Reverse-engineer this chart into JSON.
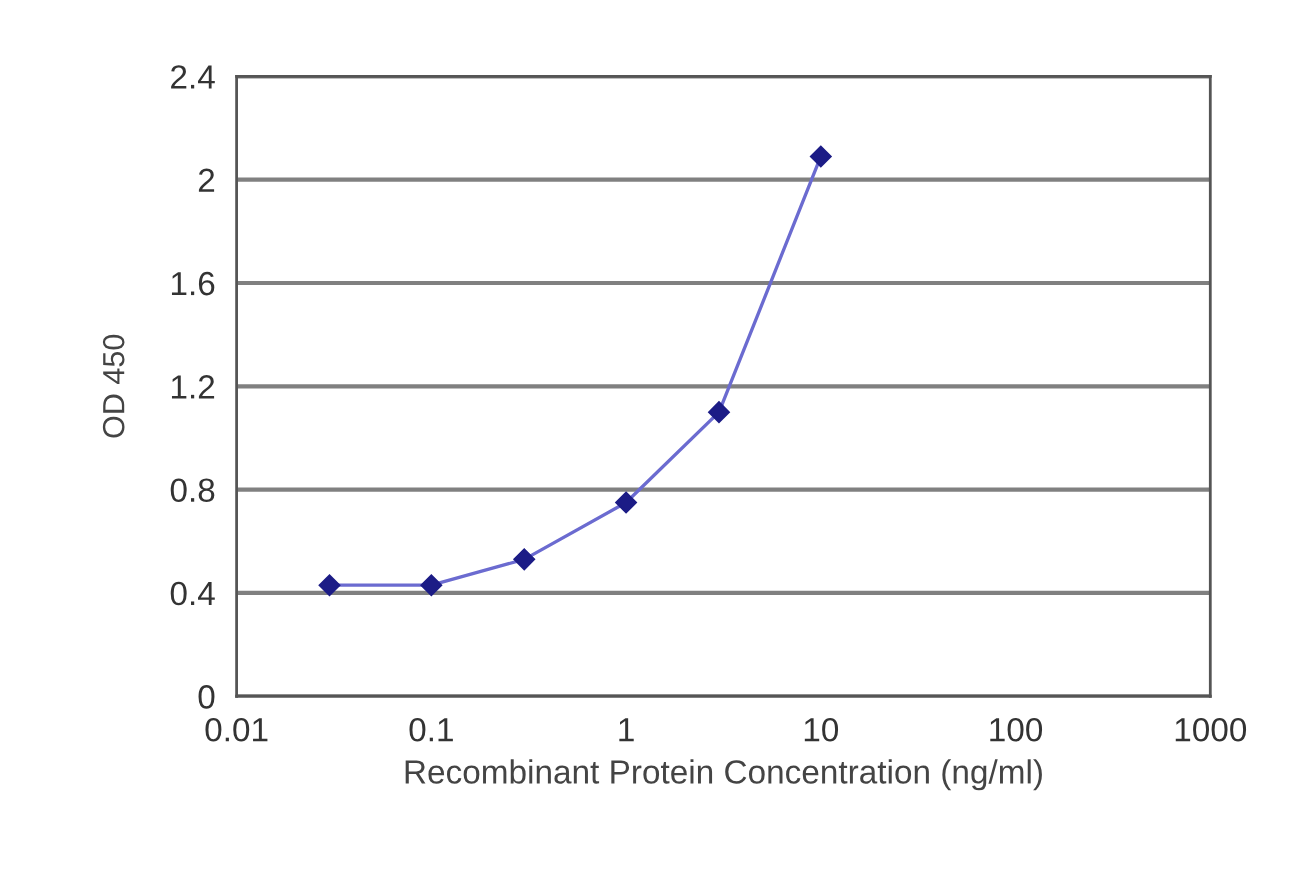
{
  "chart_data": {
    "type": "line",
    "xlabel": "Recombinant Protein Concentration (ng/ml)",
    "ylabel": "OD 450",
    "x": [
      0.03,
      0.1,
      0.3,
      1,
      3,
      10
    ],
    "series": [
      {
        "color": "#6b6bd0",
        "values": [
          0.43,
          0.43,
          0.53,
          0.75,
          1.1,
          2.09
        ]
      }
    ],
    "log": "x",
    "xlim": [
      0.01,
      1000
    ],
    "xticks": [
      0.01,
      0.1,
      1,
      10,
      100,
      1000
    ],
    "ylim": [
      0,
      2.4
    ],
    "yticks": [
      0,
      0.4,
      0.8,
      1.2,
      1.6,
      2,
      2.4
    ],
    "grid": "y",
    "marker": "diamond",
    "line_style": "solid"
  }
}
